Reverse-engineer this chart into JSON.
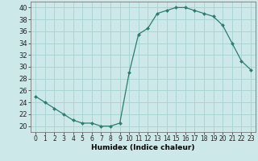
{
  "x": [
    0,
    1,
    2,
    3,
    4,
    5,
    6,
    7,
    8,
    9,
    10,
    11,
    12,
    13,
    14,
    15,
    16,
    17,
    18,
    19,
    20,
    21,
    22,
    23
  ],
  "y": [
    25,
    24,
    23,
    22,
    21,
    20.5,
    20.5,
    20,
    20,
    20.5,
    29,
    35.5,
    36.5,
    39,
    39.5,
    40,
    40,
    39.5,
    39,
    38.5,
    37,
    34,
    31,
    29.5
  ],
  "line_color": "#2d7d6e",
  "marker_color": "#2d7d6e",
  "bg_color": "#cce8e8",
  "grid_color": "#aad4d4",
  "xlabel": "Humidex (Indice chaleur)",
  "xlim": [
    -0.5,
    23.5
  ],
  "ylim": [
    19,
    41
  ],
  "yticks": [
    20,
    22,
    24,
    26,
    28,
    30,
    32,
    34,
    36,
    38,
    40
  ],
  "xticks": [
    0,
    1,
    2,
    3,
    4,
    5,
    6,
    7,
    8,
    9,
    10,
    11,
    12,
    13,
    14,
    15,
    16,
    17,
    18,
    19,
    20,
    21,
    22,
    23
  ],
  "xtick_labels": [
    "0",
    "1",
    "2",
    "3",
    "4",
    "5",
    "6",
    "7",
    "8",
    "9",
    "10",
    "11",
    "12",
    "13",
    "14",
    "15",
    "16",
    "17",
    "18",
    "19",
    "20",
    "21",
    "22",
    "23"
  ],
  "xlabel_fontsize": 6.5,
  "ytick_fontsize": 6,
  "xtick_fontsize": 5.5
}
